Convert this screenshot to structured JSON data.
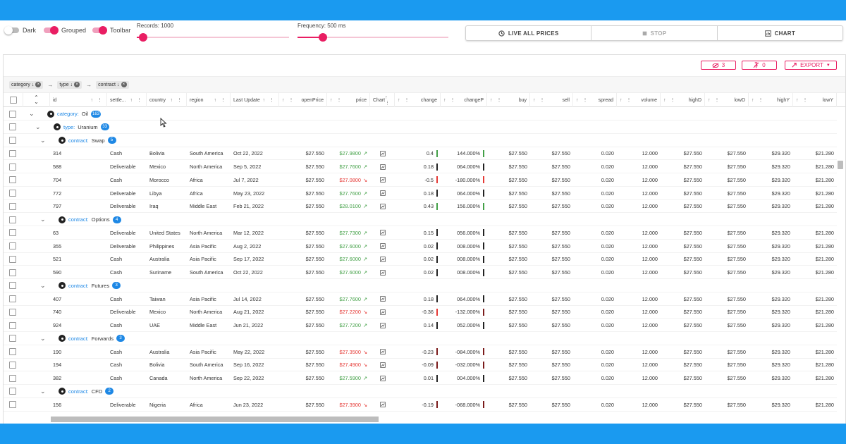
{
  "toolbar": {
    "toggles": [
      {
        "label": "Dark",
        "on": false
      },
      {
        "label": "Grouped",
        "on": true
      },
      {
        "label": "Toolbar",
        "on": true
      }
    ],
    "records": {
      "label": "Records: 1000",
      "fraction": 0.04
    },
    "frequency": {
      "label": "Frequency: 500 ms",
      "fraction": 0.17
    },
    "buttons": [
      {
        "label": "LIVE ALL PRICES",
        "icon": "clock-icon",
        "enabled": true
      },
      {
        "label": "STOP",
        "icon": "stop-icon",
        "enabled": false
      },
      {
        "label": "CHART",
        "icon": "chart-icon",
        "enabled": true
      }
    ]
  },
  "grid_tools": {
    "hidden_count": "3",
    "pinned_count": "0",
    "export_label": "EXPORT"
  },
  "group_chips": [
    {
      "label": "category"
    },
    {
      "label": "type"
    },
    {
      "label": "contract"
    }
  ],
  "columns": [
    "id",
    "settle...",
    "country",
    "region",
    "Last Update",
    "openPrice",
    "price",
    "Chart",
    "change",
    "changeP",
    "buy",
    "sell",
    "spread",
    "volume",
    "highD",
    "lowD",
    "highY",
    "lowY"
  ],
  "rows": [
    {
      "kind": "group",
      "level": 0,
      "field": "category:",
      "value": "Oil",
      "count": "163"
    },
    {
      "kind": "group",
      "level": 1,
      "field": "type:",
      "value": "Uranium",
      "count": "33"
    },
    {
      "kind": "group",
      "level": 2,
      "field": "contract:",
      "value": "Swap",
      "count": "5"
    },
    {
      "kind": "data",
      "id": "314",
      "settle": "Cash",
      "country": "Bolivia",
      "region": "South America",
      "date": "Oct 22, 2022",
      "open": "$27.550",
      "price": "$27.9800",
      "dir": "up",
      "change": "0.4",
      "changeP": "144.000%",
      "cbar": "pg",
      "pbar": "pg",
      "buy": "$27.550",
      "sell": "$27.550",
      "spread": "0.020",
      "volume": "12.000",
      "highD": "$27.550",
      "lowD": "$27.550",
      "highY": "$29.320",
      "lowY": "$21.280"
    },
    {
      "kind": "data",
      "id": "588",
      "settle": "Deliverable",
      "country": "Mexico",
      "region": "North America",
      "date": "Sep 5, 2022",
      "open": "$27.550",
      "price": "$27.7600",
      "dir": "up",
      "change": "0.18",
      "changeP": "064.000%",
      "cbar": "pk",
      "pbar": "pk",
      "buy": "$27.550",
      "sell": "$27.550",
      "spread": "0.020",
      "volume": "12.000",
      "highD": "$27.550",
      "lowD": "$27.550",
      "highY": "$29.320",
      "lowY": "$21.280"
    },
    {
      "kind": "data",
      "id": "704",
      "settle": "Cash",
      "country": "Morocco",
      "region": "Africa",
      "date": "Jul 7, 2022",
      "open": "$27.550",
      "price": "$27.0800",
      "dir": "dn",
      "change": "-0.5",
      "changeP": "-180.000%",
      "cbar": "pr",
      "pbar": "pr",
      "buy": "$27.550",
      "sell": "$27.550",
      "spread": "0.020",
      "volume": "12.000",
      "highD": "$27.550",
      "lowD": "$27.550",
      "highY": "$29.320",
      "lowY": "$21.280"
    },
    {
      "kind": "data",
      "id": "772",
      "settle": "Deliverable",
      "country": "Libya",
      "region": "Africa",
      "date": "May 23, 2022",
      "open": "$27.550",
      "price": "$27.7600",
      "dir": "up",
      "change": "0.18",
      "changeP": "064.000%",
      "cbar": "pk",
      "pbar": "pk",
      "buy": "$27.550",
      "sell": "$27.550",
      "spread": "0.020",
      "volume": "12.000",
      "highD": "$27.550",
      "lowD": "$27.550",
      "highY": "$29.320",
      "lowY": "$21.280"
    },
    {
      "kind": "data",
      "id": "797",
      "settle": "Deliverable",
      "country": "Iraq",
      "region": "Middle East",
      "date": "Feb 21, 2022",
      "open": "$27.550",
      "price": "$28.0100",
      "dir": "up",
      "change": "0.43",
      "changeP": "156.000%",
      "cbar": "pg",
      "pbar": "pg",
      "buy": "$27.550",
      "sell": "$27.550",
      "spread": "0.020",
      "volume": "12.000",
      "highD": "$27.550",
      "lowD": "$27.550",
      "highY": "$29.320",
      "lowY": "$21.280"
    },
    {
      "kind": "group",
      "level": 2,
      "field": "contract:",
      "value": "Options",
      "count": "4"
    },
    {
      "kind": "data",
      "id": "63",
      "settle": "Deliverable",
      "country": "United States",
      "region": "North America",
      "date": "Mar 12, 2022",
      "open": "$27.550",
      "price": "$27.7300",
      "dir": "up",
      "change": "0.15",
      "changeP": "056.000%",
      "cbar": "pk",
      "pbar": "pk",
      "buy": "$27.550",
      "sell": "$27.550",
      "spread": "0.020",
      "volume": "12.000",
      "highD": "$27.550",
      "lowD": "$27.550",
      "highY": "$29.320",
      "lowY": "$21.280"
    },
    {
      "kind": "data",
      "id": "355",
      "settle": "Deliverable",
      "country": "Philippines",
      "region": "Asia Pacific",
      "date": "Aug 2, 2022",
      "open": "$27.550",
      "price": "$27.6000",
      "dir": "up",
      "change": "0.02",
      "changeP": "008.000%",
      "cbar": "pk",
      "pbar": "pk",
      "buy": "$27.550",
      "sell": "$27.550",
      "spread": "0.020",
      "volume": "12.000",
      "highD": "$27.550",
      "lowD": "$27.550",
      "highY": "$29.320",
      "lowY": "$21.280"
    },
    {
      "kind": "data",
      "id": "521",
      "settle": "Cash",
      "country": "Australia",
      "region": "Asia Pacific",
      "date": "Sep 17, 2022",
      "open": "$27.550",
      "price": "$27.6000",
      "dir": "up",
      "change": "0.02",
      "changeP": "008.000%",
      "cbar": "pk",
      "pbar": "pk",
      "buy": "$27.550",
      "sell": "$27.550",
      "spread": "0.020",
      "volume": "12.000",
      "highD": "$27.550",
      "lowD": "$27.550",
      "highY": "$29.320",
      "lowY": "$21.280"
    },
    {
      "kind": "data",
      "id": "590",
      "settle": "Cash",
      "country": "Suriname",
      "region": "South America",
      "date": "Oct 22, 2022",
      "open": "$27.550",
      "price": "$27.6000",
      "dir": "up",
      "change": "0.02",
      "changeP": "008.000%",
      "cbar": "pk",
      "pbar": "pk",
      "buy": "$27.550",
      "sell": "$27.550",
      "spread": "0.020",
      "volume": "12.000",
      "highD": "$27.550",
      "lowD": "$27.550",
      "highY": "$29.320",
      "lowY": "$21.280"
    },
    {
      "kind": "group",
      "level": 2,
      "field": "contract:",
      "value": "Futures",
      "count": "3"
    },
    {
      "kind": "data",
      "id": "407",
      "settle": "Cash",
      "country": "Taiwan",
      "region": "Asia Pacific",
      "date": "Jul 14, 2022",
      "open": "$27.550",
      "price": "$27.7600",
      "dir": "up",
      "change": "0.18",
      "changeP": "064.000%",
      "cbar": "pk",
      "pbar": "pk",
      "buy": "$27.550",
      "sell": "$27.550",
      "spread": "0.020",
      "volume": "12.000",
      "highD": "$27.550",
      "lowD": "$27.550",
      "highY": "$29.320",
      "lowY": "$21.280"
    },
    {
      "kind": "data",
      "id": "740",
      "settle": "Deliverable",
      "country": "Mexico",
      "region": "North America",
      "date": "Aug 21, 2022",
      "open": "$27.550",
      "price": "$27.2200",
      "dir": "dn",
      "change": "-0.36",
      "changeP": "-132.000%",
      "cbar": "pr",
      "pbar": "pdr",
      "buy": "$27.550",
      "sell": "$27.550",
      "spread": "0.020",
      "volume": "12.000",
      "highD": "$27.550",
      "lowD": "$27.550",
      "highY": "$29.320",
      "lowY": "$21.280"
    },
    {
      "kind": "data",
      "id": "924",
      "settle": "Cash",
      "country": "UAE",
      "region": "Middle East",
      "date": "Jun 21, 2022",
      "open": "$27.550",
      "price": "$27.7200",
      "dir": "up",
      "change": "0.14",
      "changeP": "052.000%",
      "cbar": "pk",
      "pbar": "pk",
      "buy": "$27.550",
      "sell": "$27.550",
      "spread": "0.020",
      "volume": "12.000",
      "highD": "$27.550",
      "lowD": "$27.550",
      "highY": "$29.320",
      "lowY": "$21.280"
    },
    {
      "kind": "group",
      "level": 2,
      "field": "contract:",
      "value": "Forwards",
      "count": "3"
    },
    {
      "kind": "data",
      "id": "190",
      "settle": "Cash",
      "country": "Australia",
      "region": "Asia Pacific",
      "date": "May 22, 2022",
      "open": "$27.550",
      "price": "$27.3500",
      "dir": "dn",
      "change": "-0.23",
      "changeP": "-084.000%",
      "cbar": "pdr",
      "pbar": "pdr",
      "buy": "$27.550",
      "sell": "$27.550",
      "spread": "0.020",
      "volume": "12.000",
      "highD": "$27.550",
      "lowD": "$27.550",
      "highY": "$29.320",
      "lowY": "$21.280"
    },
    {
      "kind": "data",
      "id": "194",
      "settle": "Cash",
      "country": "Bolivia",
      "region": "South America",
      "date": "Sep 16, 2022",
      "open": "$27.550",
      "price": "$27.4900",
      "dir": "dn",
      "change": "-0.09",
      "changeP": "-032.000%",
      "cbar": "pdr",
      "pbar": "pdr",
      "buy": "$27.550",
      "sell": "$27.550",
      "spread": "0.020",
      "volume": "12.000",
      "highD": "$27.550",
      "lowD": "$27.550",
      "highY": "$29.320",
      "lowY": "$21.280"
    },
    {
      "kind": "data",
      "id": "382",
      "settle": "Cash",
      "country": "Canada",
      "region": "North America",
      "date": "Sep 22, 2022",
      "open": "$27.550",
      "price": "$27.5900",
      "dir": "up",
      "change": "0.01",
      "changeP": "004.000%",
      "cbar": "pk",
      "pbar": "pk",
      "buy": "$27.550",
      "sell": "$27.550",
      "spread": "0.020",
      "volume": "12.000",
      "highD": "$27.550",
      "lowD": "$27.550",
      "highY": "$29.320",
      "lowY": "$21.280"
    },
    {
      "kind": "group",
      "level": 2,
      "field": "contract:",
      "value": "CFD",
      "count": "2"
    },
    {
      "kind": "data",
      "id": "156",
      "settle": "Deliverable",
      "country": "Nigeria",
      "region": "Africa",
      "date": "Jun 23, 2022",
      "open": "$27.550",
      "price": "$27.3900",
      "dir": "dn",
      "change": "-0.19",
      "changeP": "-068.000%",
      "cbar": "pdr",
      "pbar": "pdr",
      "buy": "$27.550",
      "sell": "$27.550",
      "spread": "0.020",
      "volume": "12.000",
      "highD": "$27.550",
      "lowD": "$27.550",
      "highY": "$29.320",
      "lowY": "$21.280"
    }
  ],
  "colors": {
    "accent": "#e91e63",
    "brand_blue": "#1a9af0",
    "badge_blue": "#1e88e5",
    "up": "#43a047",
    "down": "#e53935"
  }
}
